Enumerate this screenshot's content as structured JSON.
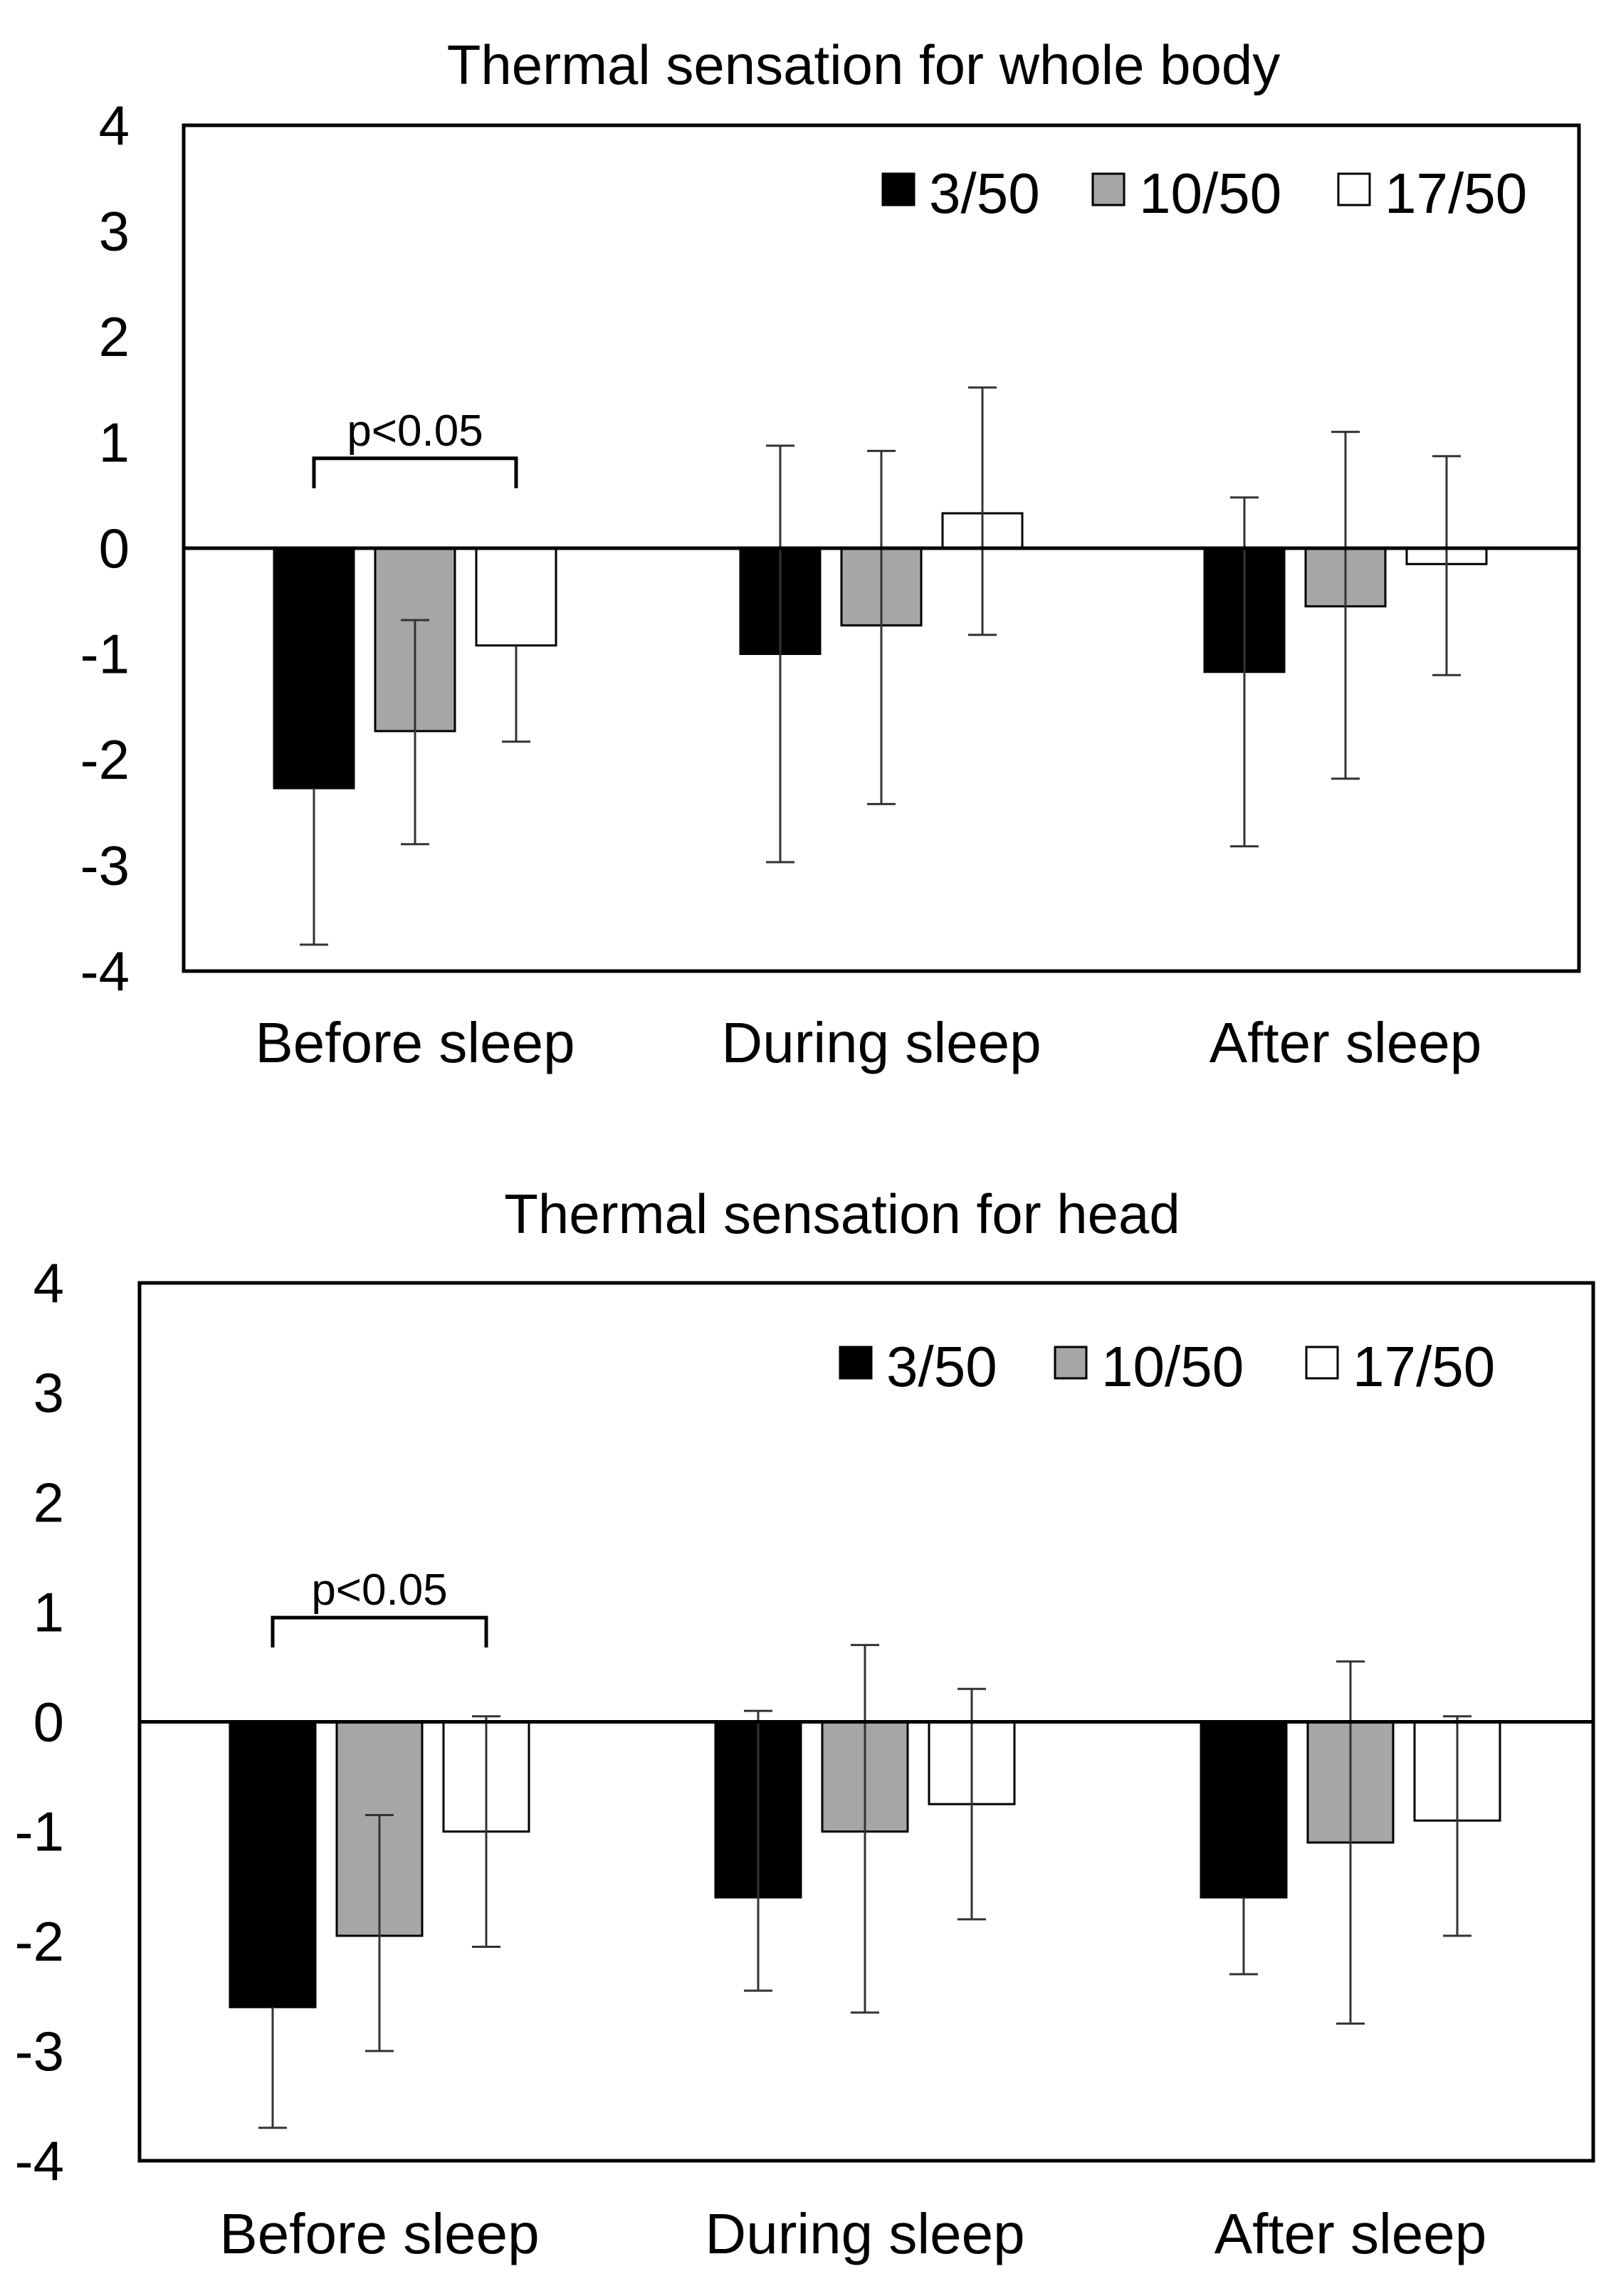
{
  "chart_data": [
    {
      "type": "bar",
      "title": "Thermal sensation for whole body",
      "xlabel": "",
      "ylabel": "",
      "ylim": [
        -4,
        4
      ],
      "yticks": [
        "4",
        "3",
        "2",
        "1",
        "0",
        "-1",
        "-2",
        "-3",
        "-4"
      ],
      "categories": [
        "Before sleep",
        "During sleep",
        "After sleep"
      ],
      "series": [
        {
          "name": "3/50",
          "color": "#000000",
          "values": [
            -2.27,
            -1.0,
            -1.17
          ],
          "err_low": [
            -3.75,
            -2.97,
            -2.82
          ],
          "err_high": [
            null,
            0.97,
            0.48
          ]
        },
        {
          "name": "10/50",
          "color": "#a6a6a6",
          "values": [
            -1.73,
            -0.73,
            -0.55
          ],
          "err_low": [
            -2.8,
            -2.42,
            -2.18
          ],
          "err_high": [
            -0.68,
            0.92,
            1.1
          ]
        },
        {
          "name": "17/50",
          "color": "#ffffff",
          "values": [
            -0.92,
            0.33,
            -0.15
          ],
          "err_low": [
            -1.83,
            -0.82,
            -1.2
          ],
          "err_high": [
            null,
            1.52,
            0.87
          ]
        }
      ],
      "annotation": {
        "text": "p<0.05",
        "from_series": 0,
        "to_series": 2,
        "category": 0,
        "level": 0.85
      }
    },
    {
      "type": "bar",
      "title": "Thermal sensation for head",
      "xlabel": "",
      "ylabel": "",
      "ylim": [
        -4,
        4
      ],
      "yticks": [
        "4",
        "3",
        "2",
        "1",
        "0",
        "-1",
        "-2",
        "-3",
        "-4"
      ],
      "categories": [
        "Before sleep",
        "During sleep",
        "After sleep"
      ],
      "series": [
        {
          "name": "3/50",
          "color": "#000000",
          "values": [
            -2.6,
            -1.6,
            -1.6
          ],
          "err_low": [
            -3.7,
            -2.45,
            -2.3
          ],
          "err_high": [
            null,
            0.1,
            null
          ]
        },
        {
          "name": "10/50",
          "color": "#a6a6a6",
          "values": [
            -1.95,
            -1.0,
            -1.1
          ],
          "err_low": [
            -3.0,
            -2.65,
            -2.75
          ],
          "err_high": [
            -0.85,
            0.7,
            0.55
          ]
        },
        {
          "name": "17/50",
          "color": "#ffffff",
          "values": [
            -1.0,
            -0.75,
            -0.9
          ],
          "err_low": [
            -2.05,
            -1.8,
            -1.95
          ],
          "err_high": [
            0.05,
            0.3,
            0.05
          ]
        }
      ],
      "annotation": {
        "text": "p<0.05",
        "from_series": 0,
        "to_series": 2,
        "category": 0,
        "level": 0.95
      }
    }
  ]
}
